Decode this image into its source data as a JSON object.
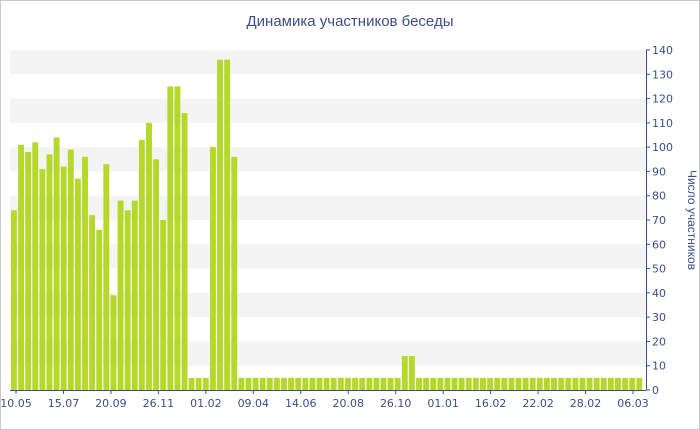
{
  "chart_data": {
    "type": "bar",
    "title": "Динамика участников беседы",
    "xlabel": "",
    "ylabel": "Число участников",
    "ylim": [
      0,
      140
    ],
    "y_ticks": [
      0,
      10,
      20,
      30,
      40,
      50,
      60,
      70,
      80,
      90,
      100,
      110,
      120,
      130,
      140
    ],
    "x_tick_labels": [
      "10.05",
      "15.07",
      "20.09",
      "26.11",
      "01.02",
      "09.04",
      "14.06",
      "20.08",
      "26.10",
      "01.01",
      "16.02",
      "22.02",
      "28.02",
      "06.03"
    ],
    "grid": "horizontal bands",
    "legend": "none",
    "colors": {
      "bar": "#b5d82b",
      "bar_edge": "#ffffff",
      "band": "#f4f4f4",
      "axis": "#3b4f8a",
      "text": "#3b4f8a"
    },
    "values": [
      74,
      101,
      98,
      102,
      91,
      97,
      104,
      92,
      99,
      87,
      96,
      72,
      66,
      93,
      39,
      78,
      74,
      78,
      103,
      110,
      95,
      70,
      125,
      125,
      114,
      5,
      5,
      5,
      100,
      136,
      136,
      96,
      5,
      5,
      5,
      5,
      5,
      5,
      5,
      5,
      5,
      5,
      5,
      5,
      5,
      5,
      5,
      5,
      5,
      5,
      5,
      5,
      5,
      5,
      5,
      14,
      14,
      5,
      5,
      5,
      5,
      5,
      5,
      5,
      5,
      5,
      5,
      5,
      5,
      5,
      5,
      5,
      5,
      5,
      5,
      5,
      5,
      5,
      5,
      5,
      5,
      5,
      5,
      5,
      5,
      5,
      5,
      5,
      5
    ]
  }
}
